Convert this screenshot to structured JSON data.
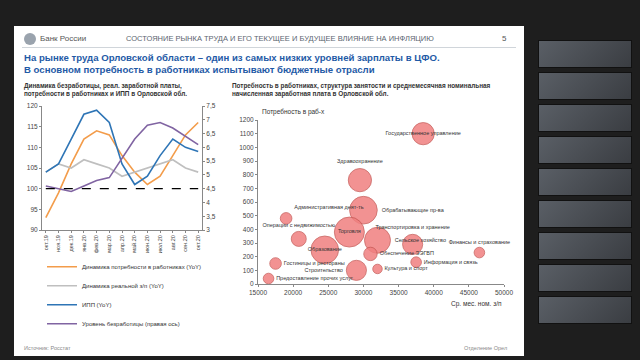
{
  "header": {
    "logo": "Банк России",
    "section": "СОСТОЯНИЕ РЫНКА ТРУДА И ЕГО ТЕКУЩЕЕ И БУДУЩЕЕ ВЛИЯНИЕ НА ИНФЛЯЦИЮ",
    "page": 5
  },
  "title_lines": [
    "На рынке труда Орловской области – один из самых низких уровней зарплаты в ЦФО.",
    "В основном потребность в работниках испытывают бюджетные отрасли"
  ],
  "footer": {
    "source": "Источник: Росстат",
    "office": "Отделение Орел"
  },
  "chart_data": [
    {
      "type": "line",
      "title": "Динамика безработицы, реал. заработной платы, потребности в работниках и ИПП в Орловской обл.",
      "categories": [
        "окт.19",
        "ноя.19",
        "дек.19",
        "янв.20",
        "фев.20",
        "мар.20",
        "апр.20",
        "май.20",
        "июн.20",
        "июл.20",
        "авг.20",
        "сен.20",
        "окт.20"
      ],
      "series": [
        {
          "name": "Динамика потребности в работниках (YoY)",
          "color": "#f39c4a",
          "values": [
            93,
            99,
            106,
            112,
            114,
            113,
            108,
            104,
            101,
            103,
            108,
            113,
            116
          ]
        },
        {
          "name": "Динамика реальной з/п (YoY)",
          "color": "#bfbfbf",
          "values": [
            104,
            106,
            105,
            107,
            106,
            105,
            103,
            104,
            105,
            106,
            107,
            105,
            104
          ]
        },
        {
          "name": "ИПП (YoY)",
          "color": "#2e75b6",
          "values": [
            104,
            106,
            112,
            118,
            119,
            116,
            106,
            101,
            103,
            108,
            112,
            110,
            109
          ]
        },
        {
          "name": "Уровень безработицы (правая ось)",
          "color": "#8064a2",
          "axis": "y2",
          "values": [
            4.6,
            4.5,
            4.4,
            4.6,
            4.8,
            4.9,
            5.6,
            6.3,
            6.8,
            6.9,
            6.7,
            6.4,
            6.1
          ]
        }
      ],
      "reference_y": 100,
      "ylim": [
        90,
        120
      ],
      "yticks": [
        90,
        95,
        100,
        105,
        110,
        115,
        120
      ],
      "y2lim": [
        3,
        7.5
      ],
      "y2ticks": [
        3,
        {
          "value": 3.5,
          "label": "3,5"
        },
        4,
        {
          "value": 4.5,
          "label": "4,5"
        },
        5,
        {
          "value": 5.5,
          "label": "5,5"
        },
        6,
        {
          "value": 6.5,
          "label": "6,5"
        },
        7,
        {
          "value": 7.5,
          "label": "7,5"
        }
      ],
      "grid": false,
      "legend": "bottom"
    },
    {
      "type": "scatter",
      "title": "Потребность в работниках, структура занятости и среднемесячная номинальная начисленная заработная плата в Орловской обл.",
      "x_label": "Ср. мес. ном. з/п",
      "y_label": "Потребность в раб-х",
      "labels": [
        "Государственное управление",
        "Здравоохранение",
        "Обрабатывающие пр-ва",
        "Торговля",
        "Сельское хозяйство",
        "Транспортировка и хранение",
        "Образование",
        "Административная деят-ть",
        "Операции с недвижимостью",
        "Гостиницы и рестораны",
        "Предоставление прочих услуг",
        "Строительство",
        "Культура и спорт",
        "Обеспечение ЭЭГВП",
        "Информация и связь",
        "Финансы и страхование"
      ],
      "x": [
        38500,
        29500,
        30000,
        28000,
        32000,
        37000,
        24500,
        19000,
        20800,
        17500,
        16500,
        29000,
        32000,
        31000,
        37500,
        46500
      ],
      "values": [
        1100,
        760,
        540,
        380,
        320,
        290,
        250,
        480,
        330,
        150,
        40,
        100,
        110,
        220,
        160,
        230
      ],
      "sizes": [
        22,
        24,
        34,
        40,
        30,
        18,
        34,
        6,
        10,
        6,
        5,
        18,
        4,
        8,
        5,
        5
      ],
      "color": "#f08080",
      "marker": "bubble",
      "xlim": [
        15000,
        50000
      ],
      "xticks": [
        15000,
        20000,
        25000,
        30000,
        35000,
        40000,
        45000,
        50000
      ],
      "ylim": [
        0,
        1200
      ],
      "yticks": [
        0,
        100,
        200,
        300,
        400,
        500,
        600,
        700,
        800,
        900,
        1000,
        1100,
        1200
      ],
      "grid": false
    }
  ]
}
